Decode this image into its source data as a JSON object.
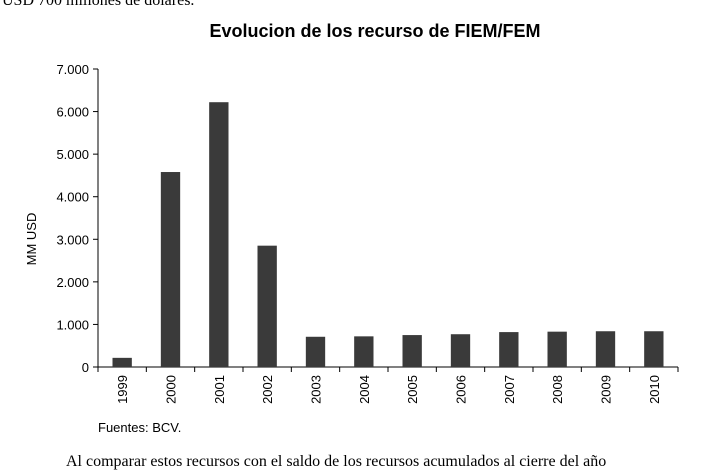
{
  "page": {
    "top_text": "USD 700 millones de dólares.",
    "bottom_text": "Al comparar estos recursos con el saldo de los recursos acumulados al cierre del año"
  },
  "chart_data": {
    "type": "bar",
    "title": "Evolucion de los recurso de FIEM/FEM",
    "xlabel": "",
    "ylabel": "MM USD",
    "categories": [
      "1999",
      "2000",
      "2001",
      "2002",
      "2003",
      "2004",
      "2005",
      "2006",
      "2007",
      "2008",
      "2009",
      "2010"
    ],
    "values": [
      215,
      4580,
      6220,
      2850,
      710,
      720,
      750,
      770,
      820,
      830,
      840,
      840
    ],
    "ylim": [
      0,
      7000
    ],
    "yticks": [
      0,
      1000,
      2000,
      3000,
      4000,
      5000,
      6000,
      7000
    ],
    "ytick_labels": [
      "0",
      "1.000",
      "2.000",
      "3.000",
      "4.000",
      "5.000",
      "6.000",
      "7.000"
    ],
    "grid": false,
    "legend": "none",
    "bar_color": "#3a3a3a",
    "source_note": "Fuentes: BCV."
  }
}
